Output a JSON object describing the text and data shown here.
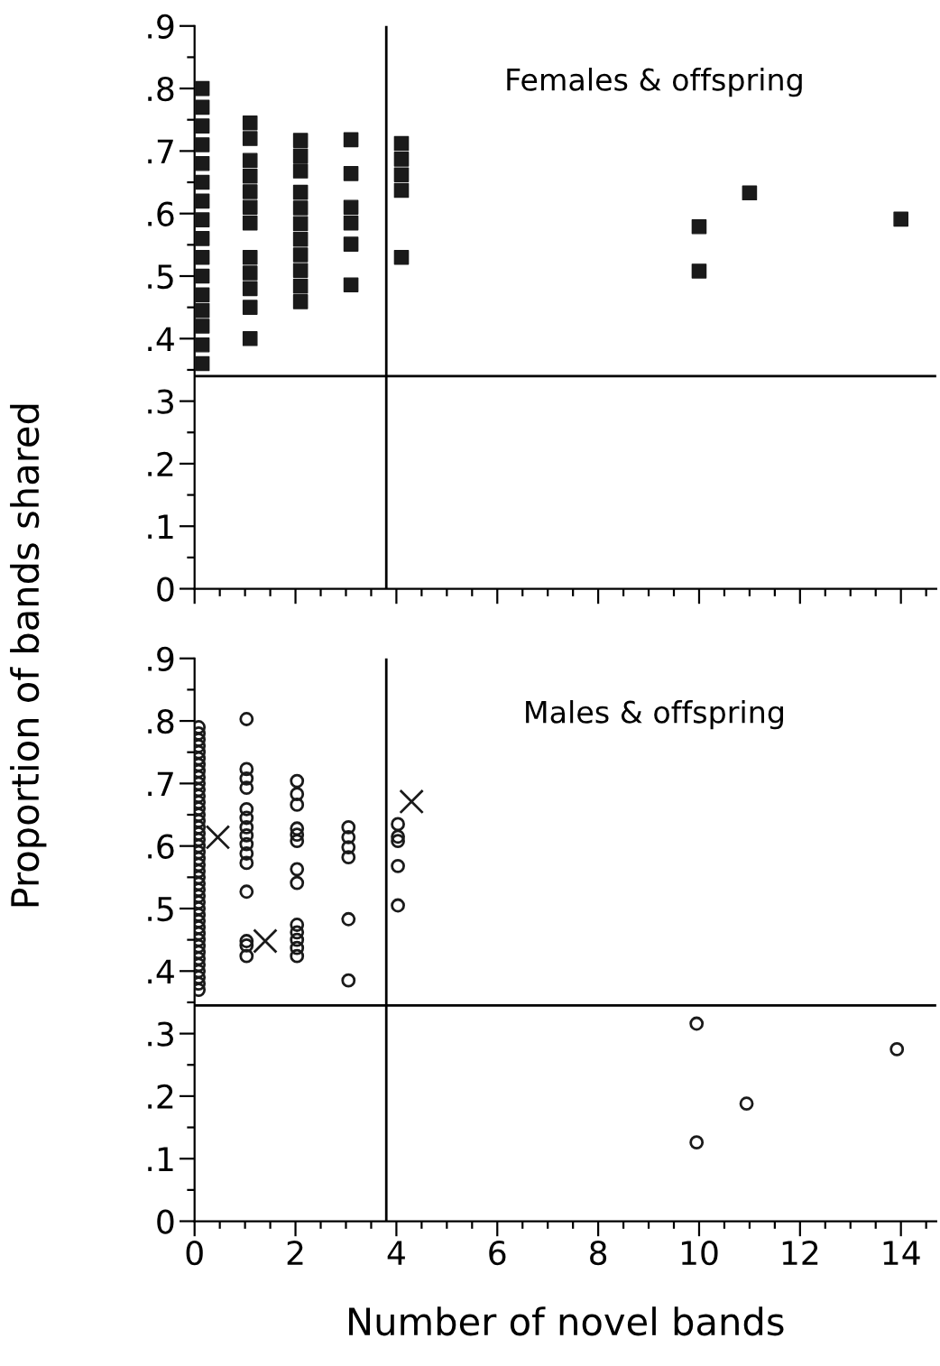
{
  "chart_data": [
    {
      "type": "scatter",
      "ylabel": "Proportion of bands shared",
      "annotations": [
        "Females & offspring"
      ],
      "xlim": [
        0,
        14.7
      ],
      "ylim": [
        0,
        0.9
      ],
      "xticks": [
        0,
        {
          "value": 0.5,
          "label": null
        },
        {
          "value": 1,
          "label": null
        },
        {
          "value": 1.5,
          "label": null
        },
        2,
        {
          "value": 2.5,
          "label": null
        },
        {
          "value": 3,
          "label": null
        },
        {
          "value": 3.5,
          "label": null
        },
        4,
        {
          "value": 4.5,
          "label": null
        },
        {
          "value": 5,
          "label": null
        },
        {
          "value": 5.5,
          "label": null
        },
        6,
        {
          "value": 6.5,
          "label": null
        },
        {
          "value": 7,
          "label": null
        },
        {
          "value": 7.5,
          "label": null
        },
        8,
        {
          "value": 8.5,
          "label": null
        },
        {
          "value": 9,
          "label": null
        },
        {
          "value": 9.5,
          "label": null
        },
        10,
        {
          "value": 10.5,
          "label": null
        },
        {
          "value": 11,
          "label": null
        },
        {
          "value": 11.5,
          "label": null
        },
        12,
        {
          "value": 12.5,
          "label": null
        },
        {
          "value": 13,
          "label": null
        },
        {
          "value": 13.5,
          "label": null
        },
        14,
        {
          "value": 14.5,
          "label": null
        }
      ],
      "yticks": [
        {
          "value": 0,
          "label": "0"
        },
        {
          "value": 0.05,
          "label": null
        },
        {
          "value": 0.1,
          "label": ".1"
        },
        {
          "value": 0.15,
          "label": null
        },
        {
          "value": 0.2,
          "label": ".2"
        },
        {
          "value": 0.25,
          "label": null
        },
        {
          "value": 0.3,
          "label": ".3"
        },
        {
          "value": 0.35,
          "label": null
        },
        {
          "value": 0.4,
          "label": ".4"
        },
        {
          "value": 0.45,
          "label": null
        },
        {
          "value": 0.5,
          "label": ".5"
        },
        {
          "value": 0.55,
          "label": null
        },
        {
          "value": 0.6,
          "label": ".6"
        },
        {
          "value": 0.65,
          "label": null
        },
        {
          "value": 0.7,
          "label": ".7"
        },
        {
          "value": 0.75,
          "label": null
        },
        {
          "value": 0.8,
          "label": ".8"
        },
        {
          "value": 0.85,
          "label": null
        },
        {
          "value": 0.9,
          "label": ".9"
        }
      ],
      "tick_labels": "y",
      "grid": false,
      "legend": false,
      "ref_lines": [
        {
          "axis": "x",
          "value": 3.8,
          "color": "#000000"
        },
        {
          "axis": "y",
          "value": 0.34,
          "color": "#000000"
        }
      ],
      "series": [
        {
          "marker": "square",
          "color": "#1a1a1a",
          "x": [
            0.15,
            0.15,
            0.15,
            0.15,
            0.15,
            0.15,
            0.15,
            0.15,
            0.15,
            0.15,
            0.15,
            0.15,
            0.15,
            0.15,
            0.15,
            0.15,
            1.1,
            1.1,
            1.1,
            1.1,
            1.1,
            1.1,
            1.1,
            1.1,
            1.1,
            1.1,
            1.1,
            1.1,
            2.1,
            2.1,
            2.1,
            2.1,
            2.1,
            2.1,
            2.1,
            2.1,
            2.1,
            2.1,
            2.1,
            3.1,
            3.1,
            3.1,
            3.1,
            3.1,
            3.1,
            4.1,
            4.1,
            4.1,
            4.1,
            4.1,
            10,
            10,
            11,
            14
          ],
          "values": [
            0.36,
            0.39,
            0.42,
            0.445,
            0.47,
            0.5,
            0.53,
            0.56,
            0.59,
            0.62,
            0.65,
            0.68,
            0.71,
            0.74,
            0.77,
            0.8,
            0.745,
            0.72,
            0.685,
            0.66,
            0.635,
            0.61,
            0.585,
            0.53,
            0.505,
            0.48,
            0.45,
            0.4,
            0.717,
            0.692,
            0.668,
            0.634,
            0.609,
            0.584,
            0.559,
            0.534,
            0.509,
            0.484,
            0.459,
            0.718,
            0.664,
            0.61,
            0.585,
            0.551,
            0.486,
            0.712,
            0.687,
            0.662,
            0.637,
            0.53,
            0.579,
            0.508,
            0.633,
            0.591
          ]
        }
      ]
    },
    {
      "type": "scatter",
      "xlabel": "Number of novel bands",
      "annotations": [
        "Males & offspring"
      ],
      "xlim": [
        0,
        14.7
      ],
      "ylim": [
        0,
        0.9
      ],
      "xticks": [
        0,
        {
          "value": 0.5,
          "label": null
        },
        {
          "value": 1,
          "label": null
        },
        {
          "value": 1.5,
          "label": null
        },
        2,
        {
          "value": 2.5,
          "label": null
        },
        {
          "value": 3,
          "label": null
        },
        {
          "value": 3.5,
          "label": null
        },
        4,
        {
          "value": 4.5,
          "label": null
        },
        {
          "value": 5,
          "label": null
        },
        {
          "value": 5.5,
          "label": null
        },
        6,
        {
          "value": 6.5,
          "label": null
        },
        {
          "value": 7,
          "label": null
        },
        {
          "value": 7.5,
          "label": null
        },
        8,
        {
          "value": 8.5,
          "label": null
        },
        {
          "value": 9,
          "label": null
        },
        {
          "value": 9.5,
          "label": null
        },
        10,
        {
          "value": 10.5,
          "label": null
        },
        {
          "value": 11,
          "label": null
        },
        {
          "value": 11.5,
          "label": null
        },
        12,
        {
          "value": 12.5,
          "label": null
        },
        {
          "value": 13,
          "label": null
        },
        {
          "value": 13.5,
          "label": null
        },
        14,
        {
          "value": 14.5,
          "label": null
        }
      ],
      "yticks": [
        {
          "value": 0,
          "label": "0"
        },
        {
          "value": 0.05,
          "label": null
        },
        {
          "value": 0.1,
          "label": ".1"
        },
        {
          "value": 0.15,
          "label": null
        },
        {
          "value": 0.2,
          "label": ".2"
        },
        {
          "value": 0.25,
          "label": null
        },
        {
          "value": 0.3,
          "label": ".3"
        },
        {
          "value": 0.35,
          "label": null
        },
        {
          "value": 0.4,
          "label": ".4"
        },
        {
          "value": 0.45,
          "label": null
        },
        {
          "value": 0.5,
          "label": ".5"
        },
        {
          "value": 0.55,
          "label": null
        },
        {
          "value": 0.6,
          "label": ".6"
        },
        {
          "value": 0.65,
          "label": null
        },
        {
          "value": 0.7,
          "label": ".7"
        },
        {
          "value": 0.75,
          "label": null
        },
        {
          "value": 0.8,
          "label": ".8"
        },
        {
          "value": 0.85,
          "label": null
        },
        {
          "value": 0.9,
          "label": ".9"
        }
      ],
      "grid": false,
      "legend": false,
      "ref_lines": [
        {
          "axis": "x",
          "value": 3.8,
          "color": "#000000"
        },
        {
          "axis": "y",
          "value": 0.345,
          "color": "#000000"
        }
      ],
      "series": [
        {
          "marker": "circle",
          "color": "#1a1a1a",
          "x": [
            0.08,
            0.08,
            0.08,
            0.08,
            0.08,
            0.08,
            0.08,
            0.08,
            0.08,
            0.08,
            0.08,
            0.08,
            0.08,
            0.08,
            0.08,
            0.08,
            0.08,
            0.08,
            0.08,
            0.08,
            0.08,
            0.08,
            0.08,
            0.08,
            0.08,
            0.08,
            0.08,
            0.08,
            0.08,
            0.08,
            0.08,
            0.08,
            0.08,
            0.08,
            0.08,
            0.08,
            0.08,
            0.08,
            0.08,
            0.08,
            0.08,
            0.08,
            0.08,
            1.03,
            1.03,
            1.03,
            1.03,
            1.03,
            1.03,
            1.03,
            1.03,
            1.03,
            1.03,
            1.03,
            1.03,
            1.03,
            1.03,
            1.03,
            2.03,
            2.03,
            2.03,
            2.03,
            2.03,
            2.03,
            2.03,
            2.03,
            2.03,
            2.03,
            2.03,
            2.03,
            2.03,
            3.05,
            3.05,
            3.05,
            3.05,
            3.05,
            3.05,
            4.03,
            4.03,
            4.03,
            4.03,
            4.03,
            9.95,
            9.95,
            10.94,
            13.92
          ],
          "values": [
            0.37,
            0.38,
            0.39,
            0.4,
            0.41,
            0.42,
            0.43,
            0.44,
            0.45,
            0.46,
            0.47,
            0.48,
            0.49,
            0.5,
            0.51,
            0.52,
            0.53,
            0.54,
            0.55,
            0.56,
            0.57,
            0.58,
            0.59,
            0.6,
            0.61,
            0.62,
            0.63,
            0.64,
            0.65,
            0.66,
            0.67,
            0.68,
            0.69,
            0.7,
            0.71,
            0.72,
            0.73,
            0.74,
            0.75,
            0.76,
            0.77,
            0.78,
            0.79,
            0.803,
            0.723,
            0.708,
            0.693,
            0.659,
            0.645,
            0.63,
            0.617,
            0.603,
            0.588,
            0.573,
            0.527,
            0.448,
            0.441,
            0.424,
            0.704,
            0.683,
            0.666,
            0.628,
            0.618,
            0.608,
            0.563,
            0.541,
            0.474,
            0.462,
            0.45,
            0.437,
            0.424,
            0.63,
            0.614,
            0.598,
            0.582,
            0.483,
            0.385,
            0.635,
            0.615,
            0.608,
            0.568,
            0.505,
            0.316,
            0.126,
            0.188,
            0.275
          ]
        },
        {
          "marker": "cross",
          "color": "#1a1a1a",
          "x": [
            0.46,
            1.4,
            4.3
          ],
          "values": [
            0.614,
            0.448,
            0.671
          ]
        }
      ]
    }
  ]
}
